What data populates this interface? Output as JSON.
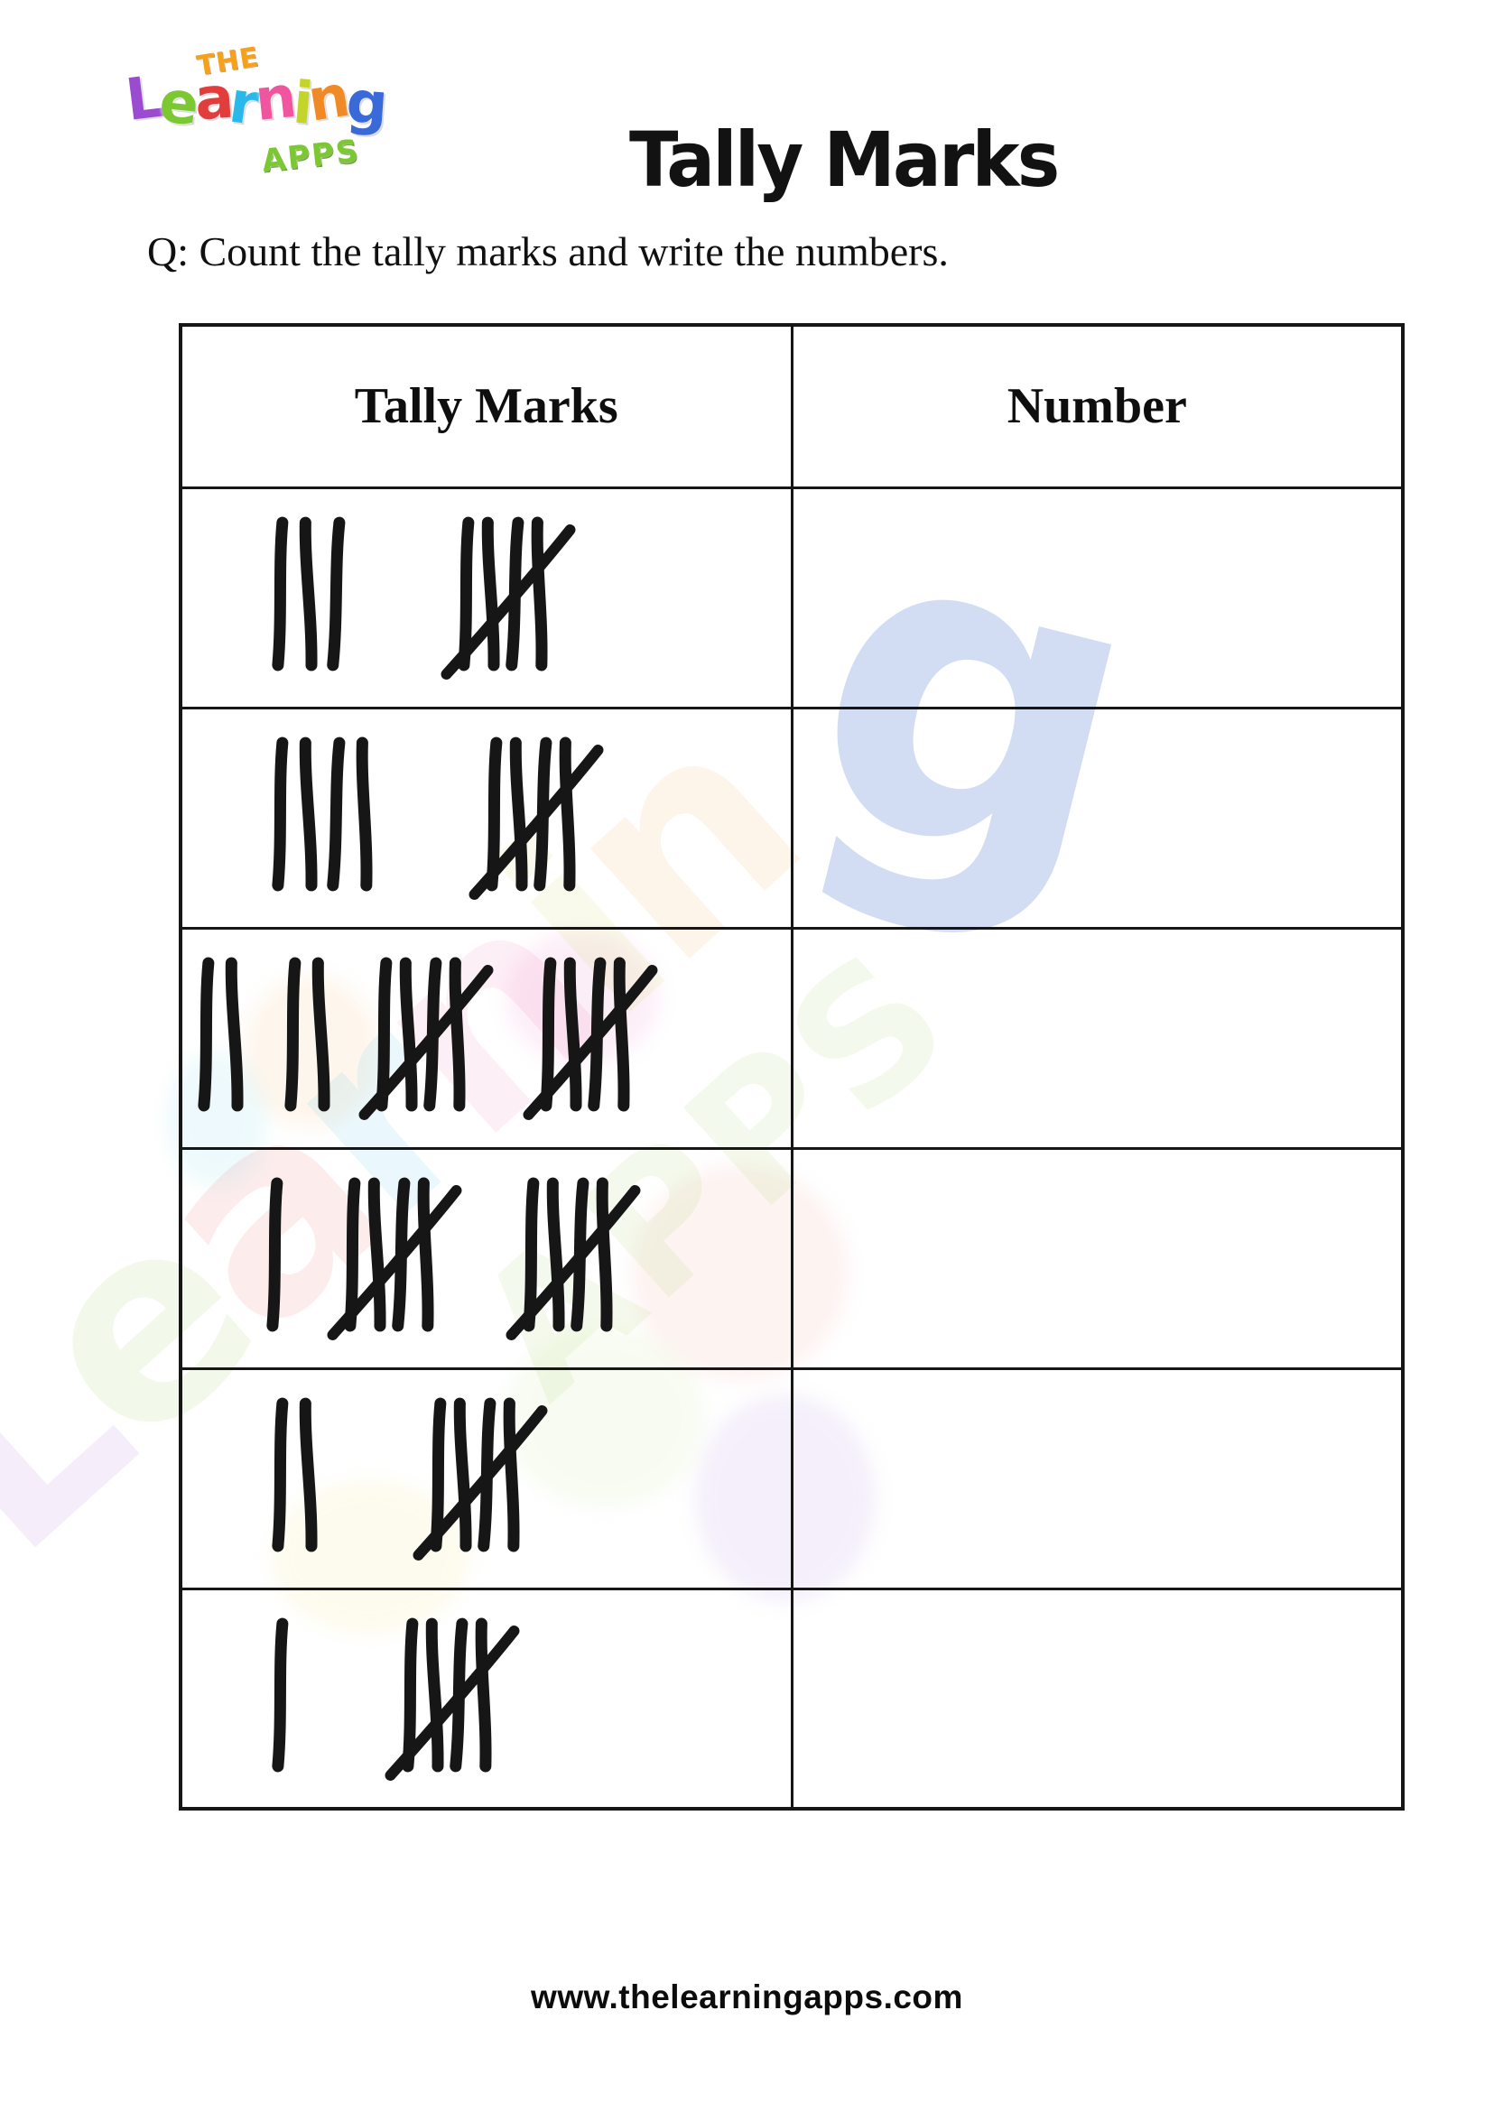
{
  "page": {
    "title": "Tally Marks",
    "question": "Q: Count the tally marks and write the numbers.",
    "footer_url": "www.thelearningapps.com",
    "background_color": "#ffffff"
  },
  "logo": {
    "word_the": "THE",
    "word_the_color": "#f5a11c",
    "word_learning_letters": [
      {
        "ch": "L",
        "color": "#9b4bd0"
      },
      {
        "ch": "e",
        "color": "#7cc832"
      },
      {
        "ch": "a",
        "color": "#e23d3d"
      },
      {
        "ch": "r",
        "color": "#29b8ea"
      },
      {
        "ch": "n",
        "color": "#f0569f"
      },
      {
        "ch": "i",
        "color": "#c3d42a"
      },
      {
        "ch": "n",
        "color": "#f08a26"
      },
      {
        "ch": "g",
        "color": "#3a6ad8"
      }
    ],
    "word_apps": "APPS",
    "word_apps_color": "#7cc832"
  },
  "table": {
    "headers": [
      "Tally Marks",
      "Number"
    ],
    "ink_color": "#161616",
    "border_color": "#161616",
    "rows": [
      {
        "tally_groups": [
          3,
          5
        ],
        "total_marks": 8,
        "number_cell": ""
      },
      {
        "tally_groups": [
          4,
          5
        ],
        "total_marks": 9,
        "number_cell": ""
      },
      {
        "tally_groups": [
          2,
          2,
          5,
          5
        ],
        "total_marks": 14,
        "number_cell": ""
      },
      {
        "tally_groups": [
          1,
          5,
          5
        ],
        "total_marks": 11,
        "number_cell": ""
      },
      {
        "tally_groups": [
          2,
          5
        ],
        "total_marks": 7,
        "number_cell": ""
      },
      {
        "tally_groups": [
          1,
          5
        ],
        "total_marks": 6,
        "number_cell": ""
      }
    ]
  },
  "watermark": {
    "word_learning": "Learning",
    "word_apps": "APPS",
    "g_color": "#6d8fd6"
  }
}
